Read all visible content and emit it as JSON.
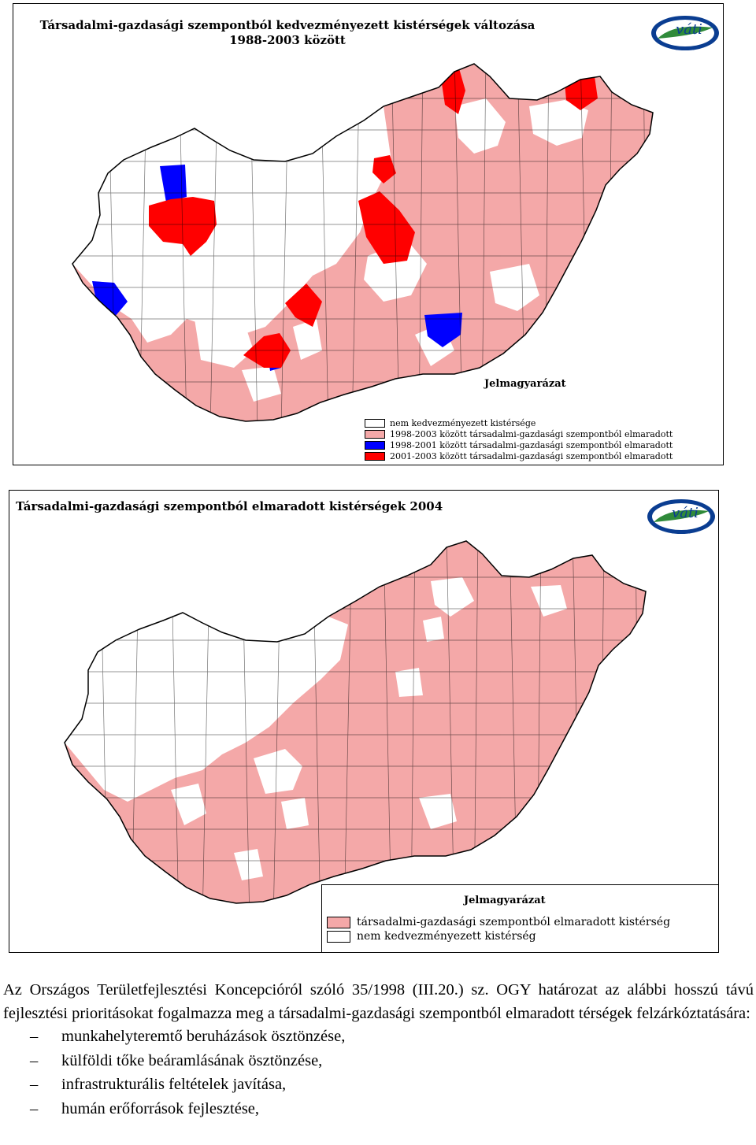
{
  "map1": {
    "title_line1": "Társadalmi-gazdasági szempontból kedvezményezett kistérségek változása",
    "title_line2": "1988-2003 között",
    "logo_text": "váti",
    "legend_title": "Jelmagyarázat",
    "legend": [
      {
        "label": "nem kedvezményezett kistérsége",
        "color": "#ffffff"
      },
      {
        "label": "1998-2003 között társadalmi-gazdasági szempontból elmaradott",
        "color": "#f4a8a8"
      },
      {
        "label": "1998-2001 között társadalmi-gazdasági szempontból elmaradott",
        "color": "#0000ff"
      },
      {
        "label": "2001-2003 között társadalmi-gazdasági szempontból elmaradott",
        "color": "#ff0000"
      }
    ]
  },
  "map2": {
    "title": "Társadalmi-gazdasági szempontból elmaradott  kistérségek 2004",
    "logo_text": "váti",
    "legend_title": "Jelmagyarázat",
    "legend": [
      {
        "label": "társadalmi-gazdasági szempontból elmaradott kistérség",
        "color": "#f4a8a8"
      },
      {
        "label": "nem kedvezményezett kistérség",
        "color": "#ffffff"
      }
    ]
  },
  "text": {
    "paragraph": "Az Országos Területfejlesztési Koncepcióról szóló 35/1998 (III.20.) sz. OGY határozat az alábbi hosszú távú fejlesztési prioritásokat fogalmazza meg a társadalmi-gazdasági szempontból elmaradott térségek felzárkóztatására:",
    "bullet_marker": "–",
    "bullets": [
      "munkahelyteremtő beruházások ösztönzése,",
      "külföldi tőke beáramlásának ösztönzése,",
      "infrastrukturális feltételek javítása,",
      "humán erőforrások fejlesztése,"
    ]
  }
}
